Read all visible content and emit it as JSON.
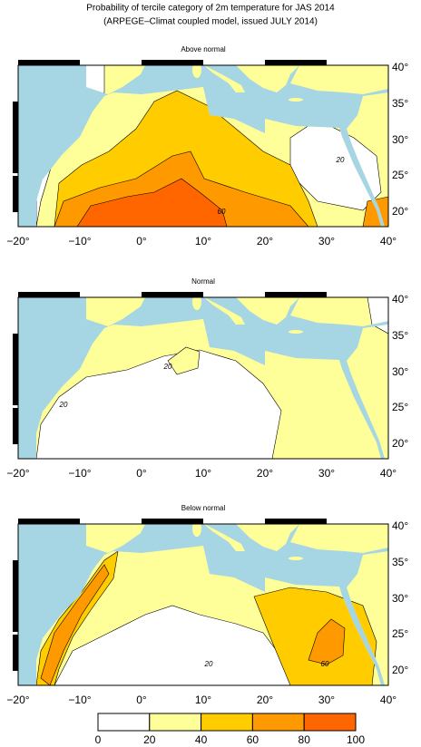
{
  "header": {
    "title": "Probability of tercile category of 2m temperature for JAS 2014",
    "subtitle": "(ARPEGE–Climat coupled model, issued JULY 2014)"
  },
  "panels": [
    {
      "title": "Above normal",
      "contour_labels": [
        "20",
        "60"
      ]
    },
    {
      "title": "Normal",
      "contour_labels": [
        "20",
        "20"
      ]
    },
    {
      "title": "Below normal",
      "contour_labels": [
        "60",
        "20"
      ]
    }
  ],
  "lon_labels": [
    "−20°",
    "−10°",
    "0°",
    "10°",
    "20°",
    "30°",
    "40°"
  ],
  "lat_labels": [
    "40°",
    "35°",
    "30°",
    "25°",
    "20°"
  ],
  "colorbar": {
    "labels": [
      "0",
      "20",
      "40",
      "60",
      "80",
      "100"
    ],
    "colors": [
      "#ffffff",
      "#ffff99",
      "#ffcc00",
      "#ff9900",
      "#ff6600"
    ]
  }
}
